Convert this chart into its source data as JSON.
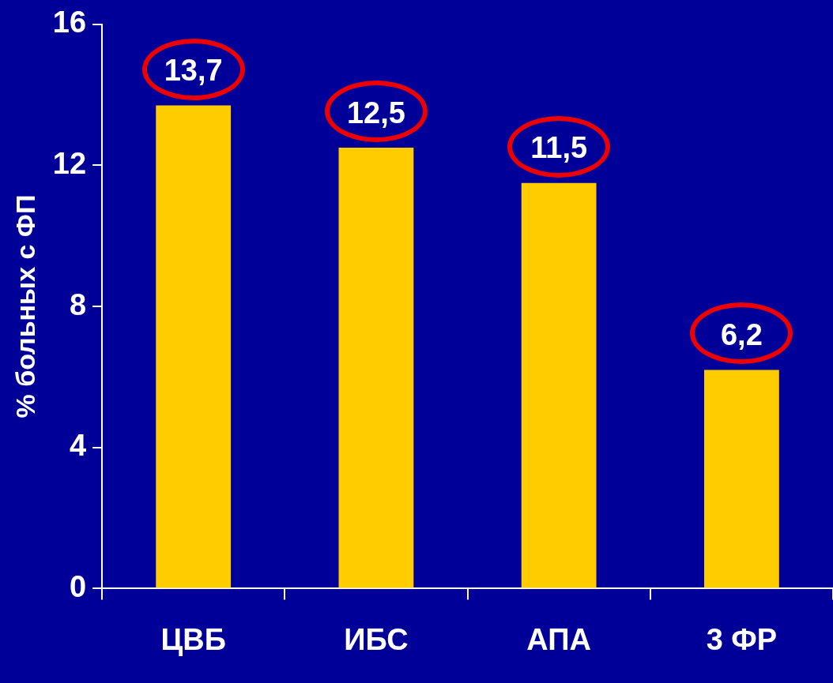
{
  "chart_data": {
    "type": "bar",
    "ylabel": "% больных с ФП",
    "categories": [
      "ЦВБ",
      "ИБС",
      "АПА",
      "3 ФР"
    ],
    "values": [
      13.7,
      12.5,
      11.5,
      6.2
    ],
    "value_labels": [
      "13,7",
      "12,5",
      "11,5",
      "6,2"
    ],
    "color": "#ffcc00",
    "ylim": [
      0,
      16
    ],
    "yticks": [
      0,
      4,
      8,
      12,
      16
    ],
    "grid": false,
    "legend": false
  }
}
